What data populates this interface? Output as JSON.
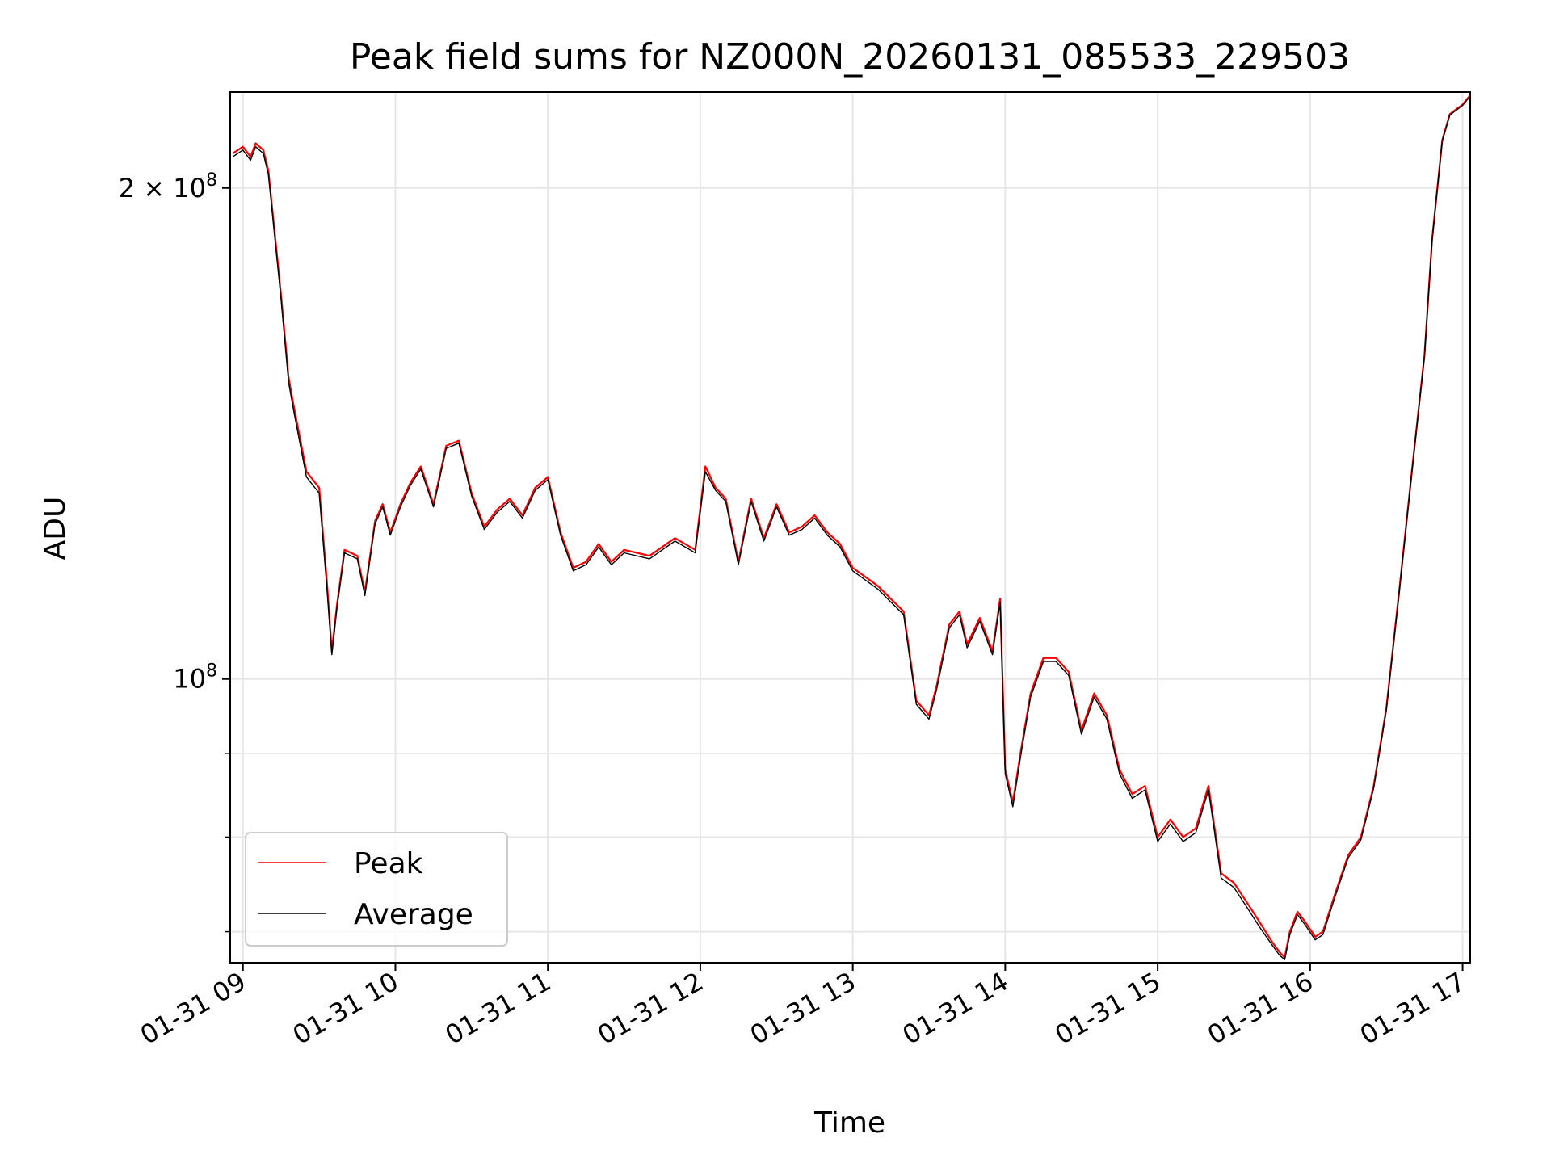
{
  "chart_data": {
    "type": "line",
    "title": "Peak field sums for NZ000N_20260131_085533_229503",
    "xlabel": "Time",
    "ylabel": "ADU",
    "y_scale": "log",
    "xlim": [
      "2026-01-31 08:55",
      "2026-01-31 17:03"
    ],
    "ylim": [
      67000000,
      229000000
    ],
    "x_ticks": [
      "01-31 09",
      "01-31 10",
      "01-31 11",
      "01-31 12",
      "01-31 13",
      "01-31 14",
      "01-31 15",
      "01-31 16",
      "01-31 17"
    ],
    "y_tick_major": [
      {
        "value": 100000000,
        "mantissa": "",
        "exponent": "8",
        "base": "10"
      },
      {
        "value": 200000000,
        "mantissa": "2 × ",
        "exponent": "8",
        "base": "10"
      }
    ],
    "y_tick_minor": [
      70000000,
      80000000,
      90000000
    ],
    "grid": true,
    "legend_position": "bottom-left",
    "colors": {
      "peak": "#ff0000",
      "average": "#000000",
      "grid": "#e6e6e6"
    },
    "x": [
      "08:56",
      "09:00",
      "09:03",
      "09:05",
      "09:08",
      "09:10",
      "09:15",
      "09:18",
      "09:20",
      "09:25",
      "09:30",
      "09:33",
      "09:35",
      "09:37",
      "09:40",
      "09:45",
      "09:48",
      "09:52",
      "09:55",
      "09:58",
      "10:02",
      "10:06",
      "10:10",
      "10:15",
      "10:20",
      "10:25",
      "10:30",
      "10:35",
      "10:40",
      "10:45",
      "10:50",
      "10:55",
      "11:00",
      "11:05",
      "11:10",
      "11:15",
      "11:20",
      "11:25",
      "11:30",
      "11:40",
      "11:50",
      "11:58",
      "12:02",
      "12:06",
      "12:10",
      "12:15",
      "12:20",
      "12:25",
      "12:30",
      "12:35",
      "12:40",
      "12:45",
      "12:50",
      "12:55",
      "13:00",
      "13:10",
      "13:20",
      "13:25",
      "13:30",
      "13:33",
      "13:38",
      "13:42",
      "13:45",
      "13:50",
      "13:55",
      "13:58",
      "14:00",
      "14:03",
      "14:06",
      "14:10",
      "14:15",
      "14:20",
      "14:25",
      "14:30",
      "14:35",
      "14:40",
      "14:45",
      "14:50",
      "14:55",
      "15:00",
      "15:05",
      "15:10",
      "15:15",
      "15:20",
      "15:25",
      "15:30",
      "15:35",
      "15:40",
      "15:45",
      "15:48",
      "15:50",
      "15:52",
      "15:55",
      "15:58",
      "16:02",
      "16:05",
      "16:10",
      "16:15",
      "16:20",
      "16:25",
      "16:30",
      "16:35",
      "16:40",
      "16:45",
      "16:48",
      "16:52",
      "16:55",
      "17:00",
      "17:03"
    ],
    "series": [
      {
        "name": "Peak",
        "values": [
          210000000,
          212000000,
          209000000,
          213000000,
          211000000,
          205000000,
          172000000,
          153000000,
          147000000,
          134000000,
          131000000,
          115000000,
          104000000,
          111000000,
          120000000,
          119000000,
          113000000,
          125000000,
          128000000,
          123000000,
          128000000,
          132000000,
          135000000,
          128000000,
          139000000,
          140000000,
          130000000,
          124000000,
          127000000,
          129000000,
          126000000,
          131000000,
          133000000,
          123000000,
          117000000,
          118000000,
          121000000,
          118000000,
          120000000,
          119000000,
          122000000,
          120000000,
          135000000,
          131000000,
          129000000,
          118000000,
          129000000,
          122000000,
          128000000,
          123000000,
          124000000,
          126000000,
          123000000,
          121000000,
          117000000,
          114000000,
          110000000,
          97000000,
          95000000,
          99000000,
          108000000,
          110000000,
          105000000,
          109000000,
          104000000,
          112000000,
          88000000,
          84000000,
          90000000,
          98000000,
          103000000,
          103000000,
          101000000,
          93000000,
          98000000,
          95000000,
          88000000,
          85000000,
          86000000,
          80000000,
          82000000,
          80000000,
          81000000,
          86000000,
          76000000,
          75000000,
          73000000,
          71000000,
          69000000,
          68000000,
          67500000,
          70000000,
          72000000,
          71000000,
          69500000,
          70000000,
          74000000,
          78000000,
          80000000,
          86000000,
          96000000,
          113000000,
          134000000,
          158000000,
          186000000,
          214000000,
          222000000,
          225000000,
          228000000
        ]
      },
      {
        "name": "Average",
        "values": [
          209000000,
          211000000,
          208000000,
          212000000,
          210000000,
          204000000,
          171000000,
          152000000,
          146000000,
          133000000,
          130000000,
          114000000,
          103500000,
          110500000,
          119500000,
          118500000,
          112500000,
          124500000,
          127500000,
          122500000,
          127500000,
          131500000,
          134500000,
          127500000,
          138500000,
          139500000,
          129500000,
          123500000,
          126500000,
          128500000,
          125500000,
          130500000,
          132500000,
          122500000,
          116500000,
          117500000,
          120500000,
          117500000,
          119500000,
          118500000,
          121500000,
          119500000,
          134000000,
          130500000,
          128500000,
          117500000,
          128500000,
          121500000,
          127500000,
          122500000,
          123500000,
          125500000,
          122500000,
          120500000,
          116500000,
          113500000,
          109500000,
          96500000,
          94500000,
          98500000,
          107500000,
          109500000,
          104500000,
          108500000,
          103500000,
          111500000,
          87500000,
          83500000,
          89500000,
          97500000,
          102500000,
          102500000,
          100500000,
          92500000,
          97500000,
          94500000,
          87500000,
          84500000,
          85500000,
          79500000,
          81500000,
          79500000,
          80500000,
          85500000,
          75500000,
          74500000,
          72500000,
          70500000,
          68700000,
          67700000,
          67300000,
          69700000,
          71700000,
          70700000,
          69200000,
          69700000,
          73700000,
          77700000,
          79700000,
          85700000,
          95700000,
          112700000,
          133700000,
          157700000,
          185700000,
          213700000,
          221700000,
          224700000,
          227700000
        ]
      }
    ]
  }
}
